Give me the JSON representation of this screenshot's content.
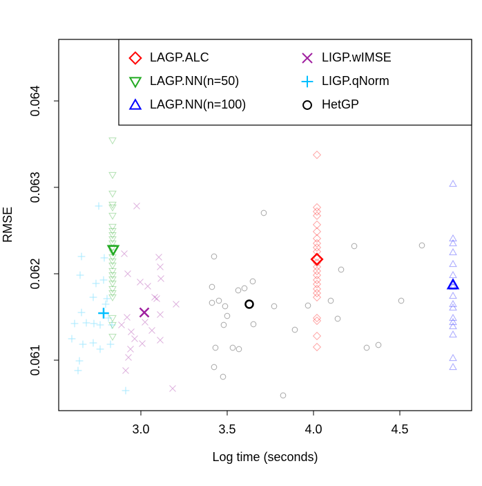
{
  "chart_data": {
    "type": "scatter",
    "xlabel": "Log time (seconds)",
    "ylabel": "RMSE",
    "xlim": [
      2.524,
      4.916
    ],
    "ylim": [
      0.060416,
      0.064712
    ],
    "xticks": [
      {
        "value": 3,
        "label": "3.0"
      },
      3.5,
      {
        "value": 4,
        "label": "4.0"
      },
      4.5
    ],
    "yticks": [
      0.061,
      0.062,
      0.063,
      0.064
    ],
    "legend": "topright",
    "point_opacity": 0.35,
    "series": [
      {
        "name": "LAGP.ALC",
        "color": "#ff0000",
        "marker": "diamond",
        "x": [
          4.02,
          4.02,
          4.02,
          4.02,
          4.02,
          4.02,
          4.02,
          4.02,
          4.02,
          4.02,
          4.02,
          4.02,
          4.02,
          4.02,
          4.02,
          4.02,
          4.02,
          4.02,
          4.02,
          4.02,
          4.02,
          4.02,
          4.02,
          4.02
        ],
        "y": [
          0.063376,
          0.062768,
          0.06272,
          0.062672,
          0.062568,
          0.062488,
          0.062408,
          0.062352,
          0.062304,
          0.062256,
          0.062192,
          0.062128,
          0.06208,
          0.062032,
          0.061984,
          0.061928,
          0.06188,
          0.061824,
          0.061776,
          0.061728,
          0.061488,
          0.061456,
          0.06128,
          0.061152
        ],
        "mean_x": 4.02,
        "mean_y": 0.062168
      },
      {
        "name": "LAGP.NN(n=50)",
        "color": "#22aa22",
        "marker": "triangle-down",
        "x": [
          2.836,
          2.836,
          2.836,
          2.836,
          2.836,
          2.836,
          2.836,
          2.836,
          2.836,
          2.836,
          2.836,
          2.836,
          2.836,
          2.836,
          2.836,
          2.836,
          2.836,
          2.836,
          2.836,
          2.836,
          2.836,
          2.836,
          2.836,
          2.836,
          2.836,
          2.836
        ],
        "y": [
          0.063544,
          0.063144,
          0.062928,
          0.0628,
          0.062768,
          0.062672,
          0.062544,
          0.062496,
          0.062448,
          0.0624,
          0.062352,
          0.062304,
          0.062248,
          0.062192,
          0.062144,
          0.062096,
          0.062032,
          0.061984,
          0.061936,
          0.061888,
          0.061824,
          0.061776,
          0.061728,
          0.061488,
          0.061408,
          0.061272
        ],
        "mean_x": 2.84,
        "mean_y": 0.06228
      },
      {
        "name": "LAGP.NN(n=100)",
        "color": "#0000ff",
        "marker": "triangle-up",
        "x": [
          4.808,
          4.808,
          4.808,
          4.808,
          4.808,
          4.808,
          4.808,
          4.808,
          4.808,
          4.808,
          4.808,
          4.808,
          4.808,
          4.808,
          4.808,
          4.808,
          4.808
        ],
        "y": [
          0.06304,
          0.062408,
          0.062352,
          0.062248,
          0.062112,
          0.061984,
          0.061904,
          0.061848,
          0.061744,
          0.061648,
          0.061608,
          0.061488,
          0.06144,
          0.061392,
          0.061296,
          0.061024,
          0.06092
        ],
        "mean_x": 4.808,
        "mean_y": 0.061872
      },
      {
        "name": "LIGP.wIMSE",
        "color": "#a020a0",
        "marker": "cross",
        "x": [
          2.976,
          3.104,
          3.112,
          2.904,
          2.924,
          2.996,
          3.04,
          3.116,
          3.08,
          3.092,
          3.204,
          3.112,
          3.024,
          2.92,
          2.888,
          2.944,
          3.064,
          2.964,
          3.112,
          3.008,
          2.94,
          2.928,
          2.912,
          3.184
        ],
        "y": [
          0.062784,
          0.062192,
          0.06208,
          0.062232,
          0.062,
          0.061904,
          0.061856,
          0.061944,
          0.061728,
          0.061712,
          0.061648,
          0.061528,
          0.06144,
          0.061496,
          0.061408,
          0.061328,
          0.061344,
          0.061248,
          0.061232,
          0.061192,
          0.061128,
          0.061032,
          0.06088,
          0.060672
        ],
        "mean_x": 3.02,
        "mean_y": 0.061552
      },
      {
        "name": "LIGP.qNorm",
        "color": "#00bfff",
        "marker": "plus",
        "x": [
          2.756,
          2.656,
          2.788,
          2.648,
          2.784,
          2.74,
          2.804,
          2.724,
          2.796,
          2.812,
          2.656,
          2.616,
          2.684,
          2.728,
          2.764,
          2.832,
          2.6,
          2.664,
          2.724,
          2.764,
          2.824,
          2.644,
          2.636,
          2.912
        ],
        "y": [
          0.062784,
          0.0622,
          0.062184,
          0.061984,
          0.061928,
          0.061888,
          0.061712,
          0.061728,
          0.061648,
          0.061488,
          0.061552,
          0.061424,
          0.061432,
          0.061424,
          0.061408,
          0.061408,
          0.061248,
          0.061184,
          0.0612,
          0.061128,
          0.061184,
          0.060992,
          0.06088,
          0.060648
        ],
        "mean_x": 2.784,
        "mean_y": 0.061544
      },
      {
        "name": "HetGP",
        "color": "#000000",
        "marker": "circle",
        "x": [
          3.424,
          3.712,
          4.236,
          4.628,
          3.648,
          3.412,
          3.564,
          3.6,
          3.452,
          3.412,
          3.488,
          3.968,
          4.1,
          4.508,
          3.772,
          3.5,
          4.14,
          3.48,
          3.652,
          3.892,
          3.432,
          3.532,
          3.568,
          3.424,
          3.476,
          4.308,
          4.376,
          3.824,
          4.16
        ],
        "y": [
          0.0622,
          0.062704,
          0.06232,
          0.062328,
          0.061912,
          0.061848,
          0.061808,
          0.061832,
          0.061688,
          0.061664,
          0.061624,
          0.061632,
          0.061688,
          0.061688,
          0.061624,
          0.061512,
          0.06148,
          0.061408,
          0.061416,
          0.061352,
          0.061144,
          0.061144,
          0.061128,
          0.06092,
          0.060808,
          0.061144,
          0.061176,
          0.060592,
          0.062048
        ],
        "mean_x": 3.628,
        "mean_y": 0.061648
      }
    ]
  }
}
